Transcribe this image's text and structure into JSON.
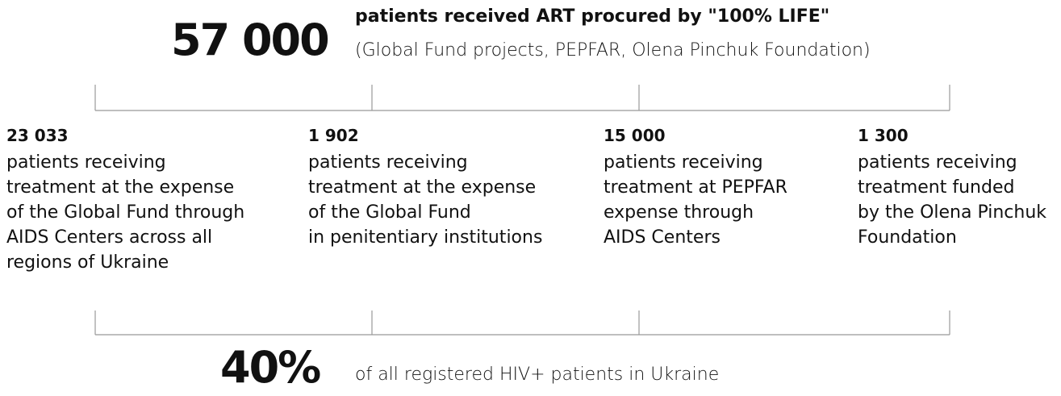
{
  "header": {
    "value": "57 000",
    "title": "patients received ART procured by \"100% LIFE\"",
    "subtitle": "(Global Fund projects, PEPFAR, Olena Pinchuk Foundation)"
  },
  "items": [
    {
      "value": "23 033",
      "lines": [
        "patients receiving",
        "treatment at the expense",
        "of the Global Fund through",
        "AIDS Centers across all",
        "regions of Ukraine"
      ]
    },
    {
      "value": "1 902",
      "lines": [
        "patients receiving",
        "treatment at the expense",
        "of the Global Fund",
        "in penitentiary institutions"
      ]
    },
    {
      "value": "15 000",
      "lines": [
        "patients receiving",
        "treatment at PEPFAR",
        "expense through",
        "AIDS Centers"
      ]
    },
    {
      "value": "1 300",
      "lines": [
        "patients receiving",
        "treatment funded",
        "by the Olena Pinchuk",
        "Foundation"
      ]
    }
  ],
  "footer": {
    "value": "40%",
    "text": "of all registered HIV+ patients in Ukraine"
  }
}
